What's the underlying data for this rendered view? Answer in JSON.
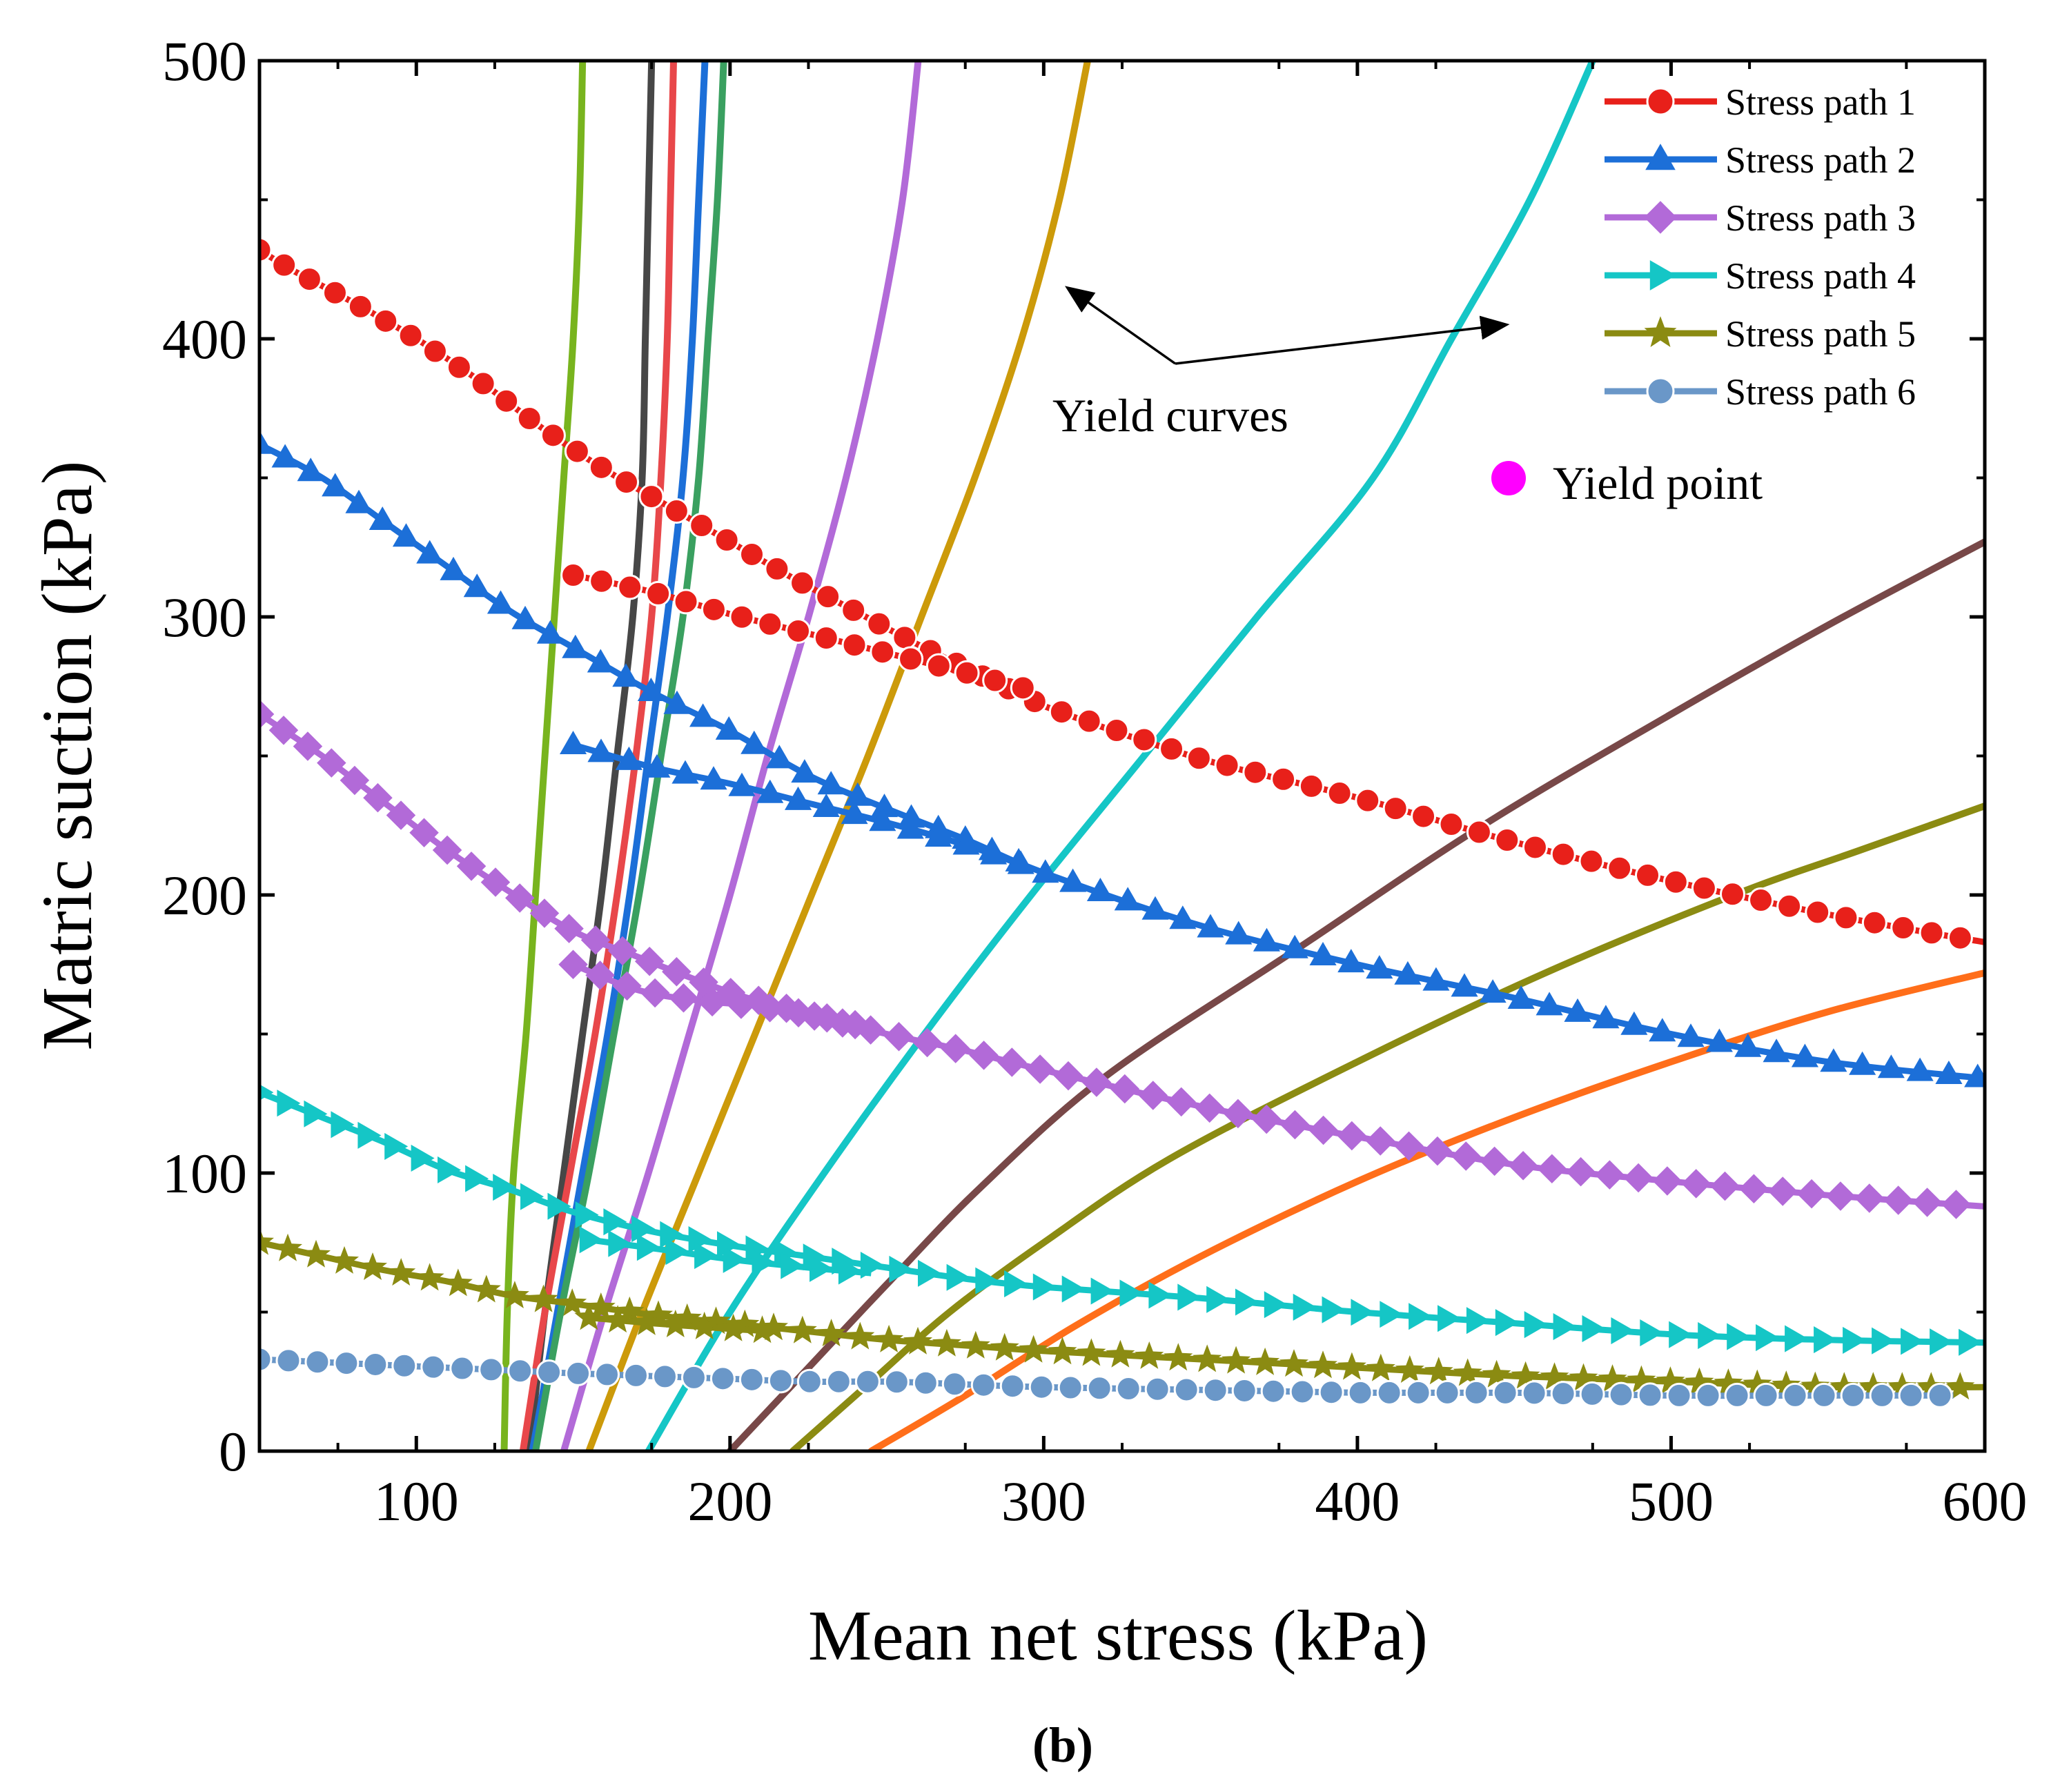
{
  "chart_data": {
    "type": "line",
    "title": "",
    "xlabel": "Mean net stress (kPa)",
    "ylabel": "Matric suction (kPa)",
    "xlim": [
      50,
      600
    ],
    "ylim": [
      0,
      500
    ],
    "xticks": [
      100,
      200,
      300,
      400,
      500,
      600
    ],
    "yticks": [
      0,
      100,
      200,
      300,
      400,
      500
    ],
    "legend_position": "top-right",
    "caption": "(b)",
    "series": [
      {
        "name": "Stress path 1",
        "color": "#e8201a",
        "marker": "circle",
        "segments": [
          [
            [
              50,
              432
            ],
            [
              60,
              425
            ],
            [
              80,
              413
            ],
            [
              100,
              400
            ],
            [
              120,
              385
            ],
            [
              140,
              368
            ],
            [
              160,
              353
            ],
            [
              180,
              340
            ],
            [
              200,
              327
            ],
            [
              220,
              314
            ],
            [
              240,
              302
            ],
            [
              260,
              290
            ],
            [
              280,
              279
            ],
            [
              300,
              268
            ],
            [
              350,
              249
            ],
            [
              400,
              235
            ],
            [
              450,
              219
            ],
            [
              500,
              205
            ],
            [
              550,
              193
            ],
            [
              600,
              183
            ]
          ],
          [
            [
              150,
              315
            ],
            [
              175,
              309
            ],
            [
              200,
              301
            ],
            [
              225,
              294
            ],
            [
              250,
              287
            ],
            [
              275,
              280
            ],
            [
              295,
              274
            ]
          ]
        ]
      },
      {
        "name": "Stress path 2",
        "color": "#1c6fd8",
        "marker": "triangle-up",
        "segments": [
          [
            [
              50,
              362
            ],
            [
              70,
              350
            ],
            [
              90,
              334
            ],
            [
              110,
              318
            ],
            [
              130,
              302
            ],
            [
              150,
              289
            ],
            [
              175,
              273
            ],
            [
              200,
              259
            ],
            [
              225,
              243
            ],
            [
              250,
              231
            ],
            [
              275,
              220
            ],
            [
              300,
              208
            ],
            [
              350,
              189
            ],
            [
              400,
              175
            ],
            [
              450,
              163
            ],
            [
              500,
              150
            ],
            [
              550,
              140
            ],
            [
              600,
              134
            ]
          ],
          [
            [
              150,
              254
            ],
            [
              175,
              246
            ],
            [
              200,
              240
            ],
            [
              225,
              233
            ],
            [
              250,
              226
            ],
            [
              275,
              218
            ],
            [
              295,
              210
            ]
          ]
        ]
      },
      {
        "name": "Stress path 3",
        "color": "#b26ad8",
        "marker": "diamond",
        "segments": [
          [
            [
              50,
              265
            ],
            [
              70,
              250
            ],
            [
              90,
              233
            ],
            [
              110,
              216
            ],
            [
              130,
              201
            ],
            [
              150,
              187
            ],
            [
              170,
              178
            ],
            [
              200,
              165
            ],
            [
              225,
              157
            ],
            [
              250,
              150
            ],
            [
              275,
              144
            ],
            [
              300,
              137
            ],
            [
              350,
              124
            ],
            [
              400,
              113
            ],
            [
              450,
              103
            ],
            [
              500,
              97
            ],
            [
              550,
              92
            ],
            [
              600,
              88
            ]
          ],
          [
            [
              150,
              175
            ],
            [
              170,
              166
            ],
            [
              190,
              162
            ],
            [
              210,
              160
            ],
            [
              230,
              156
            ],
            [
              245,
              152
            ]
          ]
        ]
      },
      {
        "name": "Stress path 4",
        "color": "#15c6c6",
        "marker": "triangle-right",
        "segments": [
          [
            [
              50,
              129
            ],
            [
              70,
              120
            ],
            [
              90,
              111
            ],
            [
              110,
              101
            ],
            [
              130,
              94
            ],
            [
              150,
              86
            ],
            [
              175,
              79
            ],
            [
              200,
              74
            ],
            [
              225,
              70
            ],
            [
              250,
              66
            ],
            [
              275,
              62
            ],
            [
              300,
              59
            ],
            [
              350,
              55
            ],
            [
              400,
              50
            ],
            [
              450,
              46
            ],
            [
              500,
              42
            ],
            [
              550,
              40
            ],
            [
              600,
              39
            ]
          ],
          [
            [
              155,
              76
            ],
            [
              175,
              73
            ],
            [
              200,
              69
            ],
            [
              225,
              66
            ],
            [
              245,
              64
            ]
          ]
        ]
      },
      {
        "name": "Stress path 5",
        "color": "#8b8b12",
        "marker": "star",
        "segments": [
          [
            [
              50,
              75
            ],
            [
              70,
              70
            ],
            [
              90,
              65
            ],
            [
              110,
              61
            ],
            [
              130,
              56
            ],
            [
              150,
              53
            ],
            [
              175,
              49
            ],
            [
              200,
              46
            ],
            [
              225,
              43
            ],
            [
              250,
              40
            ],
            [
              275,
              38
            ],
            [
              300,
              36
            ],
            [
              350,
              33
            ],
            [
              400,
              30
            ],
            [
              450,
              27
            ],
            [
              500,
              25
            ],
            [
              550,
              23
            ],
            [
              600,
              23
            ]
          ],
          [
            [
              155,
              48
            ],
            [
              175,
              46
            ],
            [
              200,
              44
            ],
            [
              215,
              43
            ]
          ]
        ]
      },
      {
        "name": "Stress path 6",
        "color": "#6a97c8",
        "marker": "circle",
        "segments": [
          [
            [
              50,
              33
            ],
            [
              70,
              32
            ],
            [
              90,
              31
            ],
            [
              110,
              30
            ],
            [
              130,
              29
            ],
            [
              150,
              28
            ],
            [
              175,
              27
            ],
            [
              200,
              26
            ],
            [
              225,
              25
            ],
            [
              250,
              25
            ],
            [
              275,
              24
            ],
            [
              300,
              23
            ],
            [
              350,
              22
            ],
            [
              400,
              21
            ],
            [
              450,
              21
            ],
            [
              500,
              20
            ],
            [
              550,
              20
            ],
            [
              590,
              20
            ]
          ]
        ]
      }
    ],
    "yield_curves": [
      {
        "color": "#78b41e",
        "points": [
          [
            128,
            0
          ],
          [
            129,
            50
          ],
          [
            131,
            100
          ],
          [
            135,
            150
          ],
          [
            138,
            200
          ],
          [
            141,
            250
          ],
          [
            144,
            300
          ],
          [
            147,
            350
          ],
          [
            150,
            400
          ],
          [
            152,
            450
          ],
          [
            153,
            500
          ]
        ]
      },
      {
        "color": "#474747",
        "points": [
          [
            136,
            0
          ],
          [
            141,
            50
          ],
          [
            147,
            100
          ],
          [
            153,
            150
          ],
          [
            159,
            200
          ],
          [
            164,
            250
          ],
          [
            169,
            300
          ],
          [
            172,
            350
          ],
          [
            173,
            400
          ],
          [
            174,
            450
          ],
          [
            175,
            500
          ]
        ]
      },
      {
        "color": "#e8474a",
        "points": [
          [
            134,
            0
          ],
          [
            141,
            50
          ],
          [
            149,
            100
          ],
          [
            157,
            150
          ],
          [
            164,
            200
          ],
          [
            170,
            250
          ],
          [
            175,
            300
          ],
          [
            178,
            350
          ],
          [
            180,
            400
          ],
          [
            181,
            450
          ],
          [
            182,
            500
          ]
        ]
      },
      {
        "color": "#1c6fd8",
        "points": [
          [
            137,
            0
          ],
          [
            145,
            50
          ],
          [
            153,
            100
          ],
          [
            161,
            150
          ],
          [
            168,
            200
          ],
          [
            174,
            250
          ],
          [
            180,
            300
          ],
          [
            185,
            350
          ],
          [
            188,
            400
          ],
          [
            190,
            450
          ],
          [
            192,
            500
          ]
        ]
      },
      {
        "color": "#3aa060",
        "points": [
          [
            138,
            0
          ],
          [
            146,
            50
          ],
          [
            155,
            100
          ],
          [
            163,
            150
          ],
          [
            171,
            200
          ],
          [
            178,
            250
          ],
          [
            185,
            300
          ],
          [
            190,
            350
          ],
          [
            193,
            400
          ],
          [
            196,
            450
          ],
          [
            198,
            500
          ]
        ]
      },
      {
        "color": "#b26ad8",
        "points": [
          [
            147,
            0
          ],
          [
            160,
            50
          ],
          [
            174,
            100
          ],
          [
            187,
            150
          ],
          [
            200,
            200
          ],
          [
            212,
            250
          ],
          [
            225,
            300
          ],
          [
            237,
            350
          ],
          [
            247,
            400
          ],
          [
            255,
            450
          ],
          [
            260,
            500
          ]
        ]
      },
      {
        "color": "#cc9a0a",
        "points": [
          [
            155,
            0
          ],
          [
            172,
            50
          ],
          [
            190,
            100
          ],
          [
            208,
            150
          ],
          [
            226,
            200
          ],
          [
            244,
            250
          ],
          [
            261,
            300
          ],
          [
            278,
            350
          ],
          [
            293,
            400
          ],
          [
            305,
            450
          ],
          [
            314,
            500
          ]
        ]
      },
      {
        "color": "#15c6c6",
        "points": [
          [
            174,
            0
          ],
          [
            200,
            50
          ],
          [
            230,
            100
          ],
          [
            262,
            150
          ],
          [
            296,
            200
          ],
          [
            332,
            250
          ],
          [
            368,
            300
          ],
          [
            405,
            350
          ],
          [
            430,
            400
          ],
          [
            455,
            450
          ],
          [
            475,
            500
          ]
        ]
      },
      {
        "color": "#784848",
        "points": [
          [
            200,
            0
          ],
          [
            225,
            30
          ],
          [
            250,
            60
          ],
          [
            280,
            95
          ],
          [
            320,
            135
          ],
          [
            380,
            180
          ],
          [
            440,
            225
          ],
          [
            500,
            265
          ],
          [
            550,
            297
          ],
          [
            600,
            327
          ]
        ]
      },
      {
        "color": "#8b8b12",
        "points": [
          [
            220,
            0
          ],
          [
            245,
            25
          ],
          [
            270,
            50
          ],
          [
            300,
            75
          ],
          [
            340,
            105
          ],
          [
            400,
            140
          ],
          [
            460,
            172
          ],
          [
            520,
            200
          ],
          [
            560,
            216
          ],
          [
            600,
            232
          ]
        ]
      },
      {
        "color": "#ff6e1a",
        "points": [
          [
            245,
            0
          ],
          [
            275,
            20
          ],
          [
            310,
            45
          ],
          [
            350,
            70
          ],
          [
            400,
            97
          ],
          [
            450,
            120
          ],
          [
            500,
            140
          ],
          [
            550,
            158
          ],
          [
            600,
            172
          ]
        ]
      }
    ],
    "yield_points": [],
    "annotations": [
      {
        "text": "Yield curves",
        "anchor": [
          355,
          375
        ],
        "arrows_to": [
          [
            308,
            418
          ],
          [
            447,
            405
          ]
        ]
      },
      {
        "text": "Yield point",
        "marker_color": "#ff00ff",
        "anchor": [
          462,
          350
        ]
      }
    ]
  }
}
